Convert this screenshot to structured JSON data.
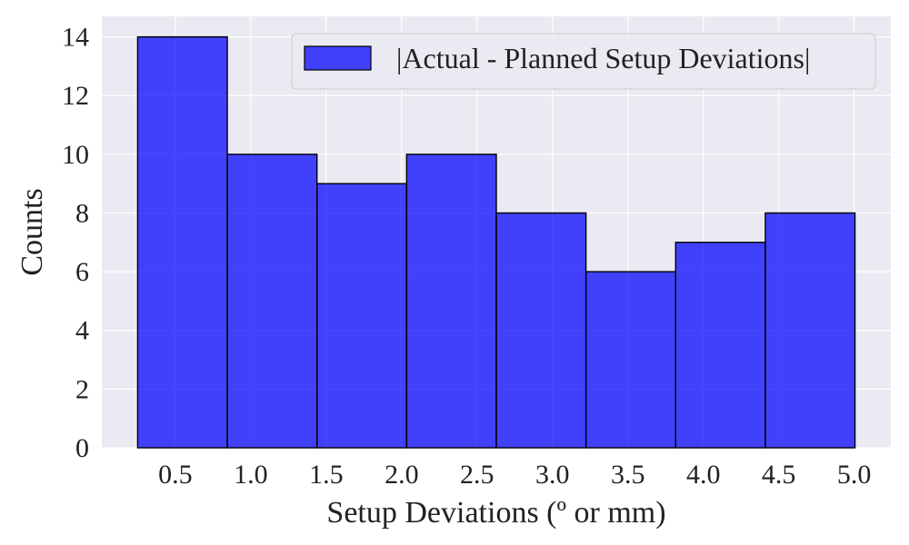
{
  "chart_data": {
    "type": "bar",
    "title": "",
    "xlabel": "Setup Deviations (º or mm)",
    "ylabel": "Counts",
    "bin_edges": [
      0.25,
      0.8444,
      1.4389,
      2.0333,
      2.6278,
      3.2222,
      3.8167,
      4.4111,
      5.0056
    ],
    "values": [
      14,
      10,
      9,
      10,
      8,
      6,
      7,
      8
    ],
    "series": [
      {
        "name": "|Actual - Planned Setup Deviations|",
        "values": [
          14,
          10,
          9,
          10,
          8,
          6,
          7,
          8
        ]
      }
    ],
    "xticks": [
      "0.5",
      "1.0",
      "1.5",
      "2.0",
      "2.5",
      "3.0",
      "3.5",
      "4.0",
      "4.5",
      "5.0"
    ],
    "xtick_values": [
      0.5,
      1.0,
      1.5,
      2.0,
      2.5,
      3.0,
      3.5,
      4.0,
      4.5,
      5.0
    ],
    "yticks": [
      "0",
      "2",
      "4",
      "6",
      "8",
      "10",
      "12",
      "14"
    ],
    "ytick_values": [
      0,
      2,
      4,
      6,
      8,
      10,
      12,
      14
    ],
    "xlim": [
      0.0125,
      5.2431
    ],
    "ylim": [
      0,
      14.7
    ],
    "grid": true,
    "legend_position": "top-right",
    "colors": {
      "bar_fill": "#0000ff",
      "bar_edge": "#000000",
      "plot_background": "#eaeaf2",
      "grid": "#ffffff"
    }
  }
}
